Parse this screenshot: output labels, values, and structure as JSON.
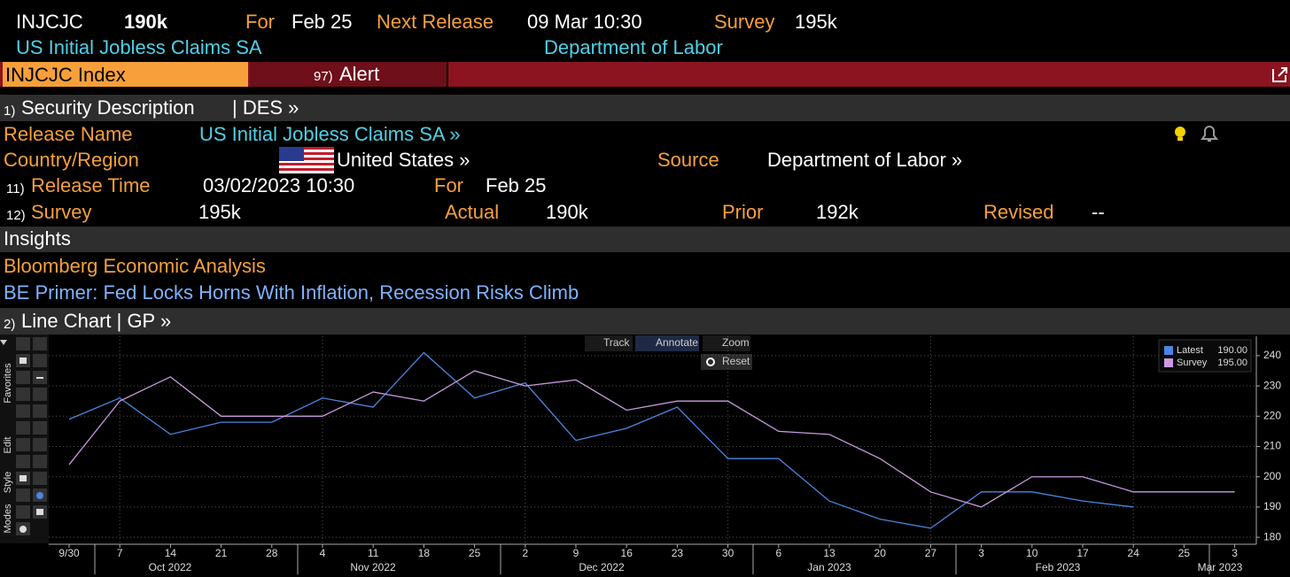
{
  "header": {
    "ticker": "INJCJC",
    "value": "190k",
    "for_label": "For",
    "for_value": "Feb 25",
    "next_label": "Next Release",
    "next_value": "09 Mar 10:30",
    "survey_label": "Survey",
    "survey_value": "195k",
    "name": "US Initial Jobless Claims SA",
    "source": "Department of Labor"
  },
  "tabs": {
    "index": "INJCJC Index",
    "alert_num": "97)",
    "alert": "Alert"
  },
  "description": {
    "num": "1)",
    "title": "Security Description",
    "code": "| DES »",
    "release_name_label": "Release Name",
    "release_name": "US Initial Jobless Claims SA »",
    "country_label": "Country/Region",
    "country": "United States »",
    "source_label": "Source",
    "source": "Department of Labor »",
    "time_num": "11)",
    "time_label": "Release Time",
    "time": "03/02/2023 10:30",
    "for_label": "For",
    "for_value": "Feb 25",
    "survey_num": "12)",
    "survey_label": "Survey",
    "survey": "195k",
    "actual_label": "Actual",
    "actual": "190k",
    "prior_label": "Prior",
    "prior": "192k",
    "revised_label": "Revised",
    "revised": "--"
  },
  "insights": {
    "title": "Insights",
    "source": "Bloomberg Economic Analysis",
    "headline": "BE Primer: Fed Locks Horns With Inflation, Recession Risks Climb"
  },
  "chart_section": {
    "num": "2)",
    "title": "Line Chart | GP »"
  },
  "toolbar": {
    "track": "Track",
    "annotate": "Annotate",
    "zoom": "Zoom",
    "reset": "Reset",
    "side": [
      "Favorites",
      "Edit",
      "Style",
      "Modes"
    ]
  },
  "chart_data": {
    "type": "line",
    "categories": [
      "9/30",
      "7",
      "14",
      "21",
      "28",
      "4",
      "11",
      "18",
      "25",
      "2",
      "9",
      "16",
      "23",
      "30",
      "6",
      "13",
      "20",
      "27",
      "3",
      "10",
      "17",
      "24",
      "25",
      "3"
    ],
    "months": [
      "Oct 2022",
      "Nov 2022",
      "Dec 2022",
      "Jan 2023",
      "Feb 2023",
      "Mar 2023"
    ],
    "series": [
      {
        "name": "Latest",
        "color": "#4a86e0",
        "last_label": "190.00",
        "values": [
          219,
          226,
          214,
          218,
          218,
          226,
          223,
          241,
          226,
          231,
          212,
          216,
          223,
          206,
          206,
          192,
          186,
          183,
          195,
          195,
          192,
          190,
          null,
          null
        ]
      },
      {
        "name": "Survey",
        "color": "#c99be0",
        "last_label": "195.00",
        "values": [
          204,
          225,
          233,
          220,
          220,
          220,
          228,
          225,
          235,
          230,
          232,
          222,
          225,
          225,
          215,
          214,
          206,
          195,
          190,
          200,
          200,
          195,
          195,
          195
        ]
      }
    ],
    "ylim": [
      177.7,
      246.4
    ],
    "yticks": [
      180,
      190,
      200,
      210,
      220,
      230,
      240
    ],
    "grid": true,
    "legend": "upper right"
  }
}
